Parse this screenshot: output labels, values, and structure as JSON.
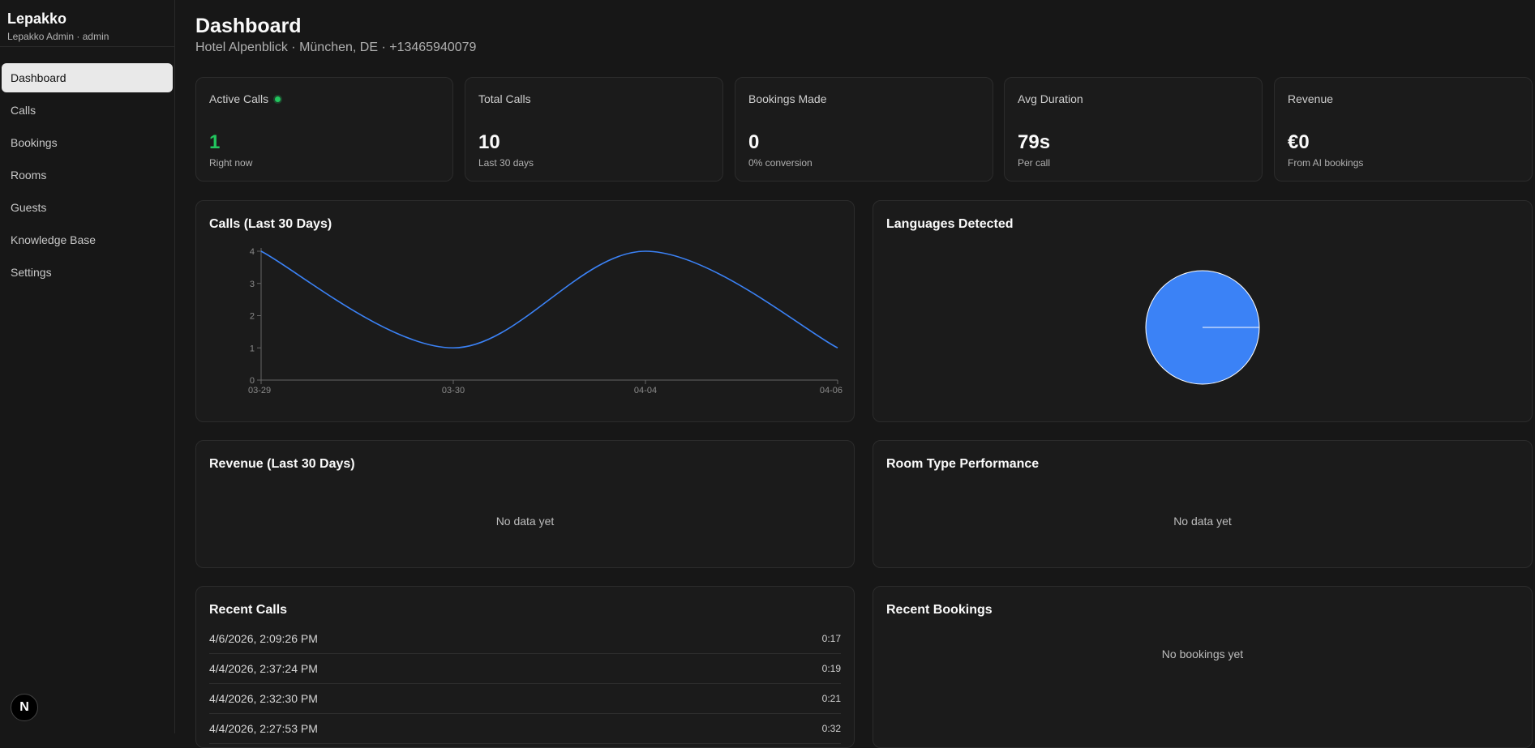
{
  "sidebar": {
    "brand": "Lepakko",
    "user": "Lepakko Admin · admin",
    "items": [
      {
        "label": "Dashboard",
        "active": true
      },
      {
        "label": "Calls"
      },
      {
        "label": "Bookings"
      },
      {
        "label": "Rooms"
      },
      {
        "label": "Guests"
      },
      {
        "label": "Knowledge Base"
      },
      {
        "label": "Settings"
      }
    ],
    "badge": "N"
  },
  "header": {
    "title": "Dashboard",
    "subtitle": "Hotel Alpenblick · München, DE · +13465940079"
  },
  "stats": [
    {
      "label": "Active Calls",
      "value": "1",
      "note": "Right now",
      "value_color": "#22c55e",
      "live": true
    },
    {
      "label": "Total Calls",
      "value": "10",
      "note": "Last 30 days"
    },
    {
      "label": "Bookings Made",
      "value": "0",
      "note": "0% conversion"
    },
    {
      "label": "Avg Duration",
      "value": "79s",
      "note": "Per call"
    },
    {
      "label": "Revenue",
      "value": "€0",
      "note": "From AI bookings"
    }
  ],
  "calls_chart": {
    "title": "Calls (Last 30 Days)"
  },
  "languages_chart": {
    "title": "Languages Detected"
  },
  "revenue_chart": {
    "title": "Revenue (Last 30 Days)",
    "empty": "No data yet"
  },
  "room_perf": {
    "title": "Room Type Performance",
    "empty": "No data yet"
  },
  "recent_calls": {
    "title": "Recent Calls",
    "rows": [
      {
        "time": "4/6/2026, 2:09:26 PM",
        "duration": "0:17"
      },
      {
        "time": "4/4/2026, 2:37:24 PM",
        "duration": "0:19"
      },
      {
        "time": "4/4/2026, 2:32:30 PM",
        "duration": "0:21"
      },
      {
        "time": "4/4/2026, 2:27:53 PM",
        "duration": "0:32"
      }
    ]
  },
  "recent_bookings": {
    "title": "Recent Bookings",
    "empty": "No bookings yet"
  },
  "colors": {
    "accent": "#3b82f6",
    "live": "#22c55e"
  },
  "chart_data": [
    {
      "type": "line",
      "title": "Calls (Last 30 Days)",
      "x": [
        "03-29",
        "03-30",
        "04-04",
        "04-06"
      ],
      "series": [
        {
          "values": [
            4,
            1,
            4,
            1
          ]
        }
      ],
      "ylim": [
        0,
        4
      ],
      "yticks": [
        0,
        1,
        2,
        3,
        4
      ],
      "grid": false,
      "color": "#3b82f6"
    },
    {
      "type": "pie",
      "title": "Languages Detected",
      "values": [
        1
      ],
      "color": "#3b82f6"
    }
  ]
}
